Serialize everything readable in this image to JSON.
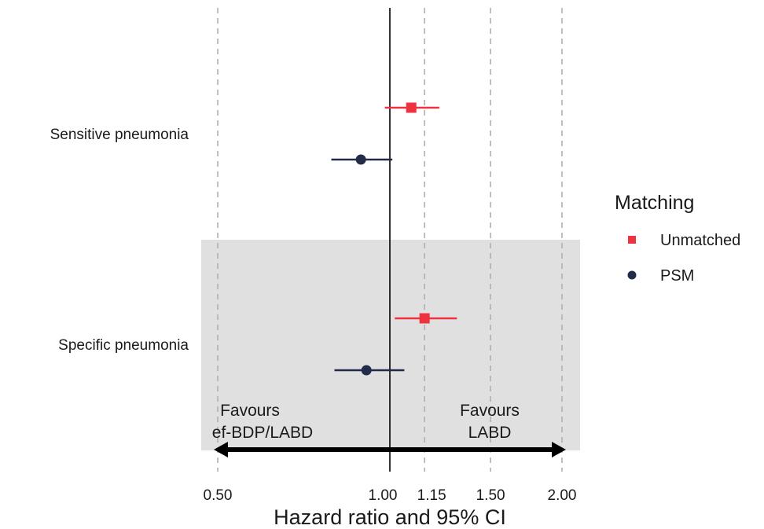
{
  "chart_data": {
    "type": "forest",
    "xlabel": "Hazard ratio and 95% CI",
    "x_scale": "log",
    "xlim": [
      0.48,
      2.1
    ],
    "x_ticks": [
      0.5,
      1.0,
      1.15,
      1.5,
      2.0
    ],
    "x_tick_labels": [
      "0.50",
      "1.00",
      "1.15",
      "1.50",
      "2.00"
    ],
    "reference_line": 1.0,
    "grid": "dashed vertical lines at tick values",
    "categories": [
      "Sensitive pneumonia",
      "Specific pneumonia"
    ],
    "shaded_category": "Specific pneumonia",
    "series": [
      {
        "name": "Unmatched",
        "color": "#ee3340",
        "marker": "square",
        "estimate": [
          1.09,
          1.15
        ],
        "lower": [
          0.98,
          1.02
        ],
        "upper": [
          1.22,
          1.31
        ]
      },
      {
        "name": "PSM",
        "color": "#232b4a",
        "marker": "circle",
        "estimate": [
          0.89,
          0.91
        ],
        "lower": [
          0.79,
          0.8
        ],
        "upper": [
          1.01,
          1.06
        ]
      }
    ],
    "legend": {
      "title": "Matching",
      "position": "right"
    },
    "annotations": {
      "left_line1": "Favours",
      "left_line2": "ef-BDP/LABD",
      "right_line1": "Favours",
      "right_line2": "LABD"
    },
    "colors": {
      "shade": "#e0e0e0",
      "grid": "#b0b0b0",
      "axis": "#000000"
    }
  }
}
